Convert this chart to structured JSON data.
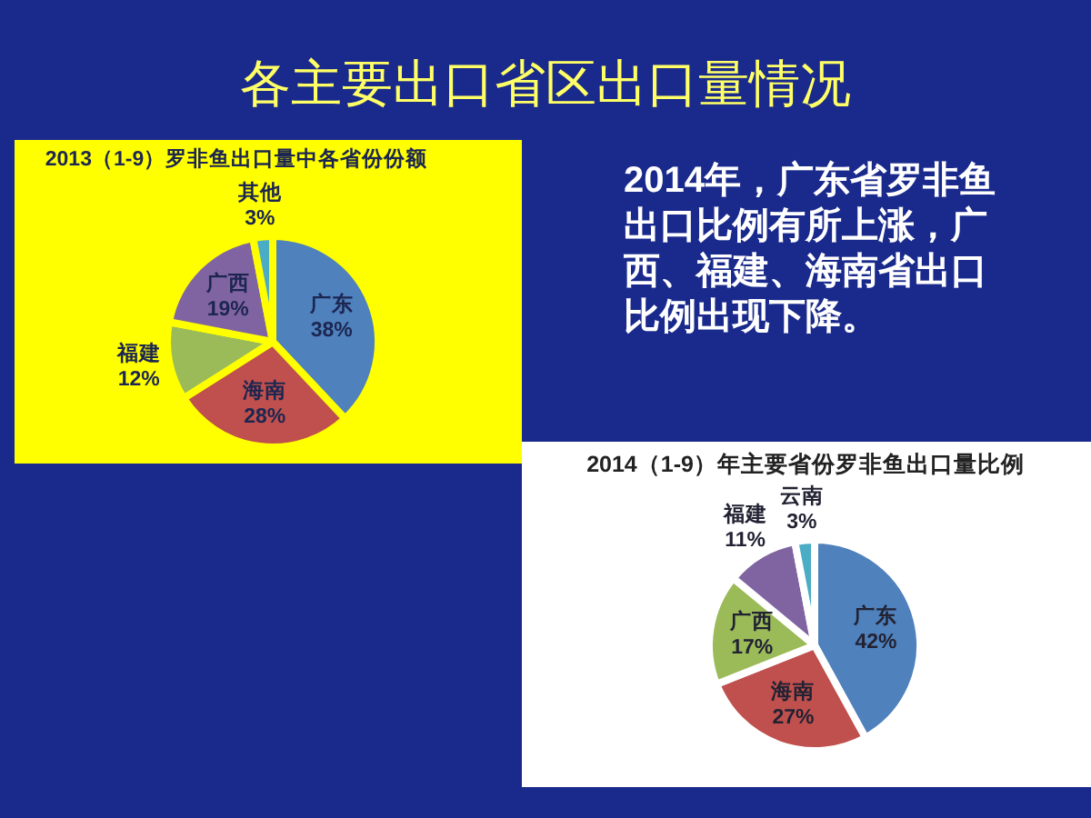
{
  "chart_data": [
    {
      "type": "other",
      "title": "各主要出口省区出口量情况"
    },
    {
      "type": "pie",
      "title": "2013（1-9）罗非鱼出口量中各省份份额",
      "categories": [
        "广东",
        "海南",
        "福建",
        "广西",
        "其他"
      ],
      "values": [
        38,
        28,
        12,
        19,
        3
      ],
      "value_labels": [
        "38%",
        "28%",
        "12%",
        "19%",
        "3%"
      ],
      "colors": [
        "#4f81bd",
        "#c0504d",
        "#9bbb59",
        "#8064a2",
        "#4bacc6"
      ]
    },
    {
      "type": "other",
      "annotations": [
        "2014年，广东省罗非鱼出口比例有所上涨，广西、福建、海南省出口比例出现下降。"
      ]
    },
    {
      "type": "pie",
      "title": "2014（1-9）年主要省份罗非鱼出口量比例",
      "categories": [
        "广东",
        "海南",
        "广西",
        "福建",
        "云南"
      ],
      "values": [
        42,
        27,
        17,
        11,
        3
      ],
      "value_labels": [
        "42%",
        "27%",
        "17%",
        "11%",
        "3%"
      ],
      "colors": [
        "#4f81bd",
        "#c0504d",
        "#9bbb59",
        "#8064a2",
        "#4bacc6"
      ]
    }
  ]
}
